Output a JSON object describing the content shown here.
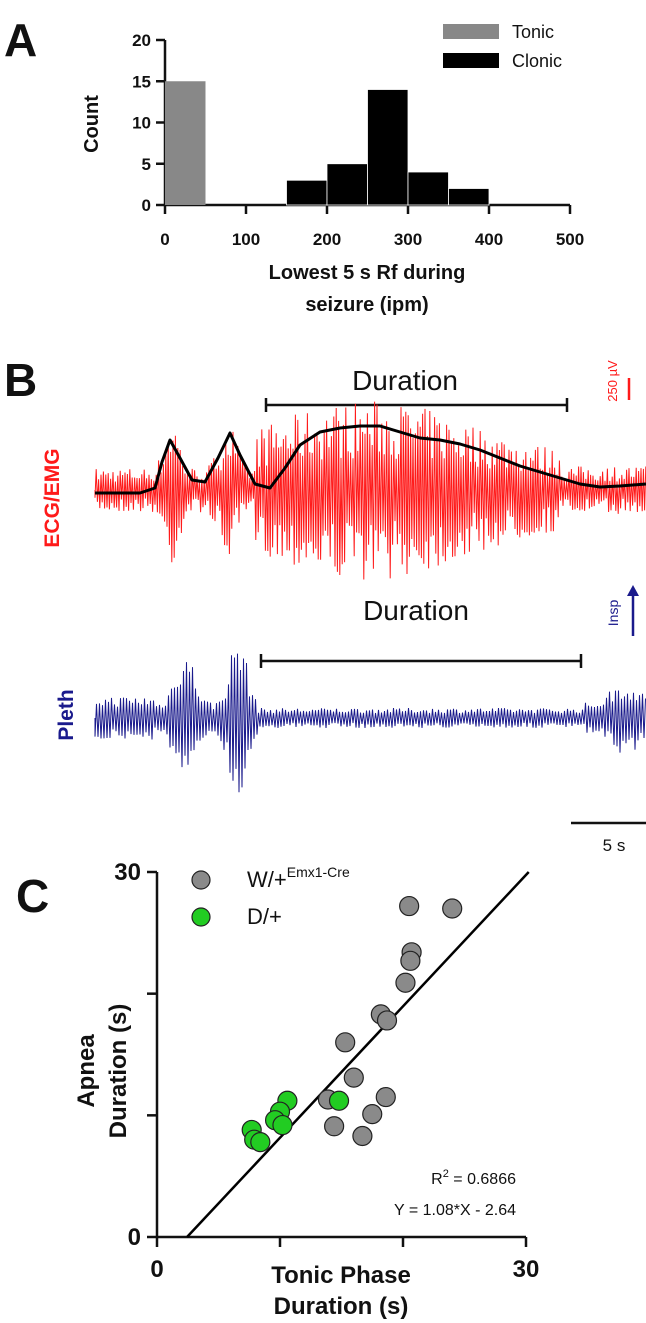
{
  "panel_labels": {
    "a": "A",
    "b": "B",
    "c": "C"
  },
  "colors": {
    "tonic": "#888888",
    "clonic": "#000000",
    "ecg": "#ff1a1a",
    "envelope": "#000000",
    "pleth": "#1a1a8c",
    "w_group": "#8a8a8a",
    "d_group": "#22cc22"
  },
  "panel_b": {
    "ecg_label": "ECG/EMG",
    "pleth_label": "Pleth",
    "duration_label_top": "Duration",
    "duration_label_bottom": "Duration",
    "ecg_scale_label": "250 µV",
    "pleth_scale_label": "Insp",
    "time_scale_label": "5 s"
  },
  "chart_data": [
    {
      "type": "bar",
      "panel": "A",
      "xlabel_line1": "Lowest 5 s Rf during",
      "xlabel_line2": "seizure (ipm)",
      "ylabel": "Count",
      "xlim": [
        0,
        500
      ],
      "ylim": [
        0,
        20
      ],
      "xticks": [
        0,
        100,
        200,
        300,
        400,
        500
      ],
      "yticks": [
        0,
        5,
        10,
        15,
        20
      ],
      "bin_width": 50,
      "series": [
        {
          "name": "Tonic",
          "bins": [
            {
              "x0": 0,
              "x1": 50,
              "count": 15
            }
          ]
        },
        {
          "name": "Clonic",
          "bins": [
            {
              "x0": 150,
              "x1": 200,
              "count": 3
            },
            {
              "x0": 200,
              "x1": 250,
              "count": 5
            },
            {
              "x0": 250,
              "x1": 300,
              "count": 14
            },
            {
              "x0": 300,
              "x1": 350,
              "count": 4
            },
            {
              "x0": 350,
              "x1": 400,
              "count": 2
            }
          ]
        }
      ],
      "legend_position": "top-right"
    },
    {
      "type": "scatter",
      "panel": "C",
      "xlabel_line1": "Tonic Phase",
      "xlabel_line2": "Duration (s)",
      "ylabel_line1": "Apnea",
      "ylabel_line2": "Duration (s)",
      "xlim": [
        0,
        30
      ],
      "ylim": [
        0,
        30
      ],
      "xtick_labels": [
        "0",
        "30"
      ],
      "ytick_labels": [
        "0",
        "30"
      ],
      "series": [
        {
          "name_main": "W/+",
          "name_sup": "Emx1-Cre",
          "points": [
            [
              20.5,
              27.2
            ],
            [
              24,
              27
            ],
            [
              20.7,
              23.4
            ],
            [
              20.6,
              22.7
            ],
            [
              20.2,
              20.9
            ],
            [
              18.2,
              18.3
            ],
            [
              18.7,
              17.8
            ],
            [
              15.3,
              16
            ],
            [
              16,
              13.1
            ],
            [
              13.9,
              11.3
            ],
            [
              18.6,
              11.5
            ],
            [
              17.5,
              10.1
            ],
            [
              14.4,
              9.1
            ],
            [
              16.7,
              8.3
            ]
          ]
        },
        {
          "name_main": "D/+",
          "points": [
            [
              10.6,
              11.2
            ],
            [
              14.8,
              11.2
            ],
            [
              10,
              10.3
            ],
            [
              9.6,
              9.6
            ],
            [
              10.2,
              9.2
            ],
            [
              7.7,
              8.8
            ],
            [
              7.9,
              8
            ],
            [
              8.4,
              7.8
            ]
          ]
        }
      ],
      "fit": {
        "slope": 1.08,
        "intercept": -2.64
      },
      "r2_main": "R",
      "r2_sup": "2",
      "r2_value": " = 0.6866",
      "equation": "Y = 1.08*X - 2.64",
      "legend_position": "top-left"
    }
  ]
}
